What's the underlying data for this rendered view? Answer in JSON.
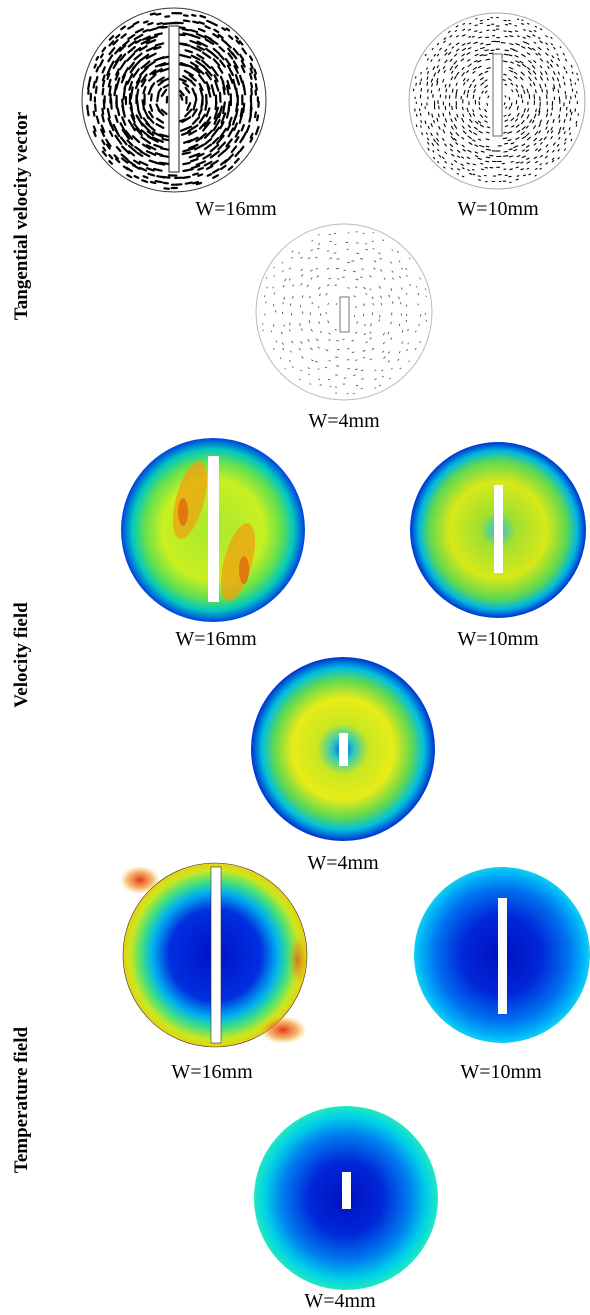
{
  "rows": [
    {
      "label": "Tangential velocity vector",
      "kind": "vector",
      "panels": [
        {
          "caption": "W=16mm",
          "blade_width_mm": 16
        },
        {
          "caption": "W=10mm",
          "blade_width_mm": 10
        },
        {
          "caption": "W=4mm",
          "blade_width_mm": 4
        }
      ]
    },
    {
      "label": "Velocity field",
      "kind": "velocity",
      "panels": [
        {
          "caption": "W=16mm",
          "blade_width_mm": 16
        },
        {
          "caption": "W=10mm",
          "blade_width_mm": 10
        },
        {
          "caption": "W=4mm",
          "blade_width_mm": 4
        }
      ]
    },
    {
      "label": "Temperature field",
      "kind": "temperature",
      "panels": [
        {
          "caption": "W=16mm",
          "blade_width_mm": 16
        },
        {
          "caption": "W=10mm",
          "blade_width_mm": 10
        },
        {
          "caption": "W=4mm",
          "blade_width_mm": 4
        }
      ]
    }
  ],
  "colors": {
    "vector_stroke": "#000000",
    "circle_outline_light": "#aaaaaa",
    "jet_blue": "#0000c8",
    "jet_cyan": "#00c8ff",
    "jet_green": "#40e040",
    "jet_yellow": "#f0f000",
    "jet_red": "#e02000",
    "blade_fill": "#ffffff"
  }
}
